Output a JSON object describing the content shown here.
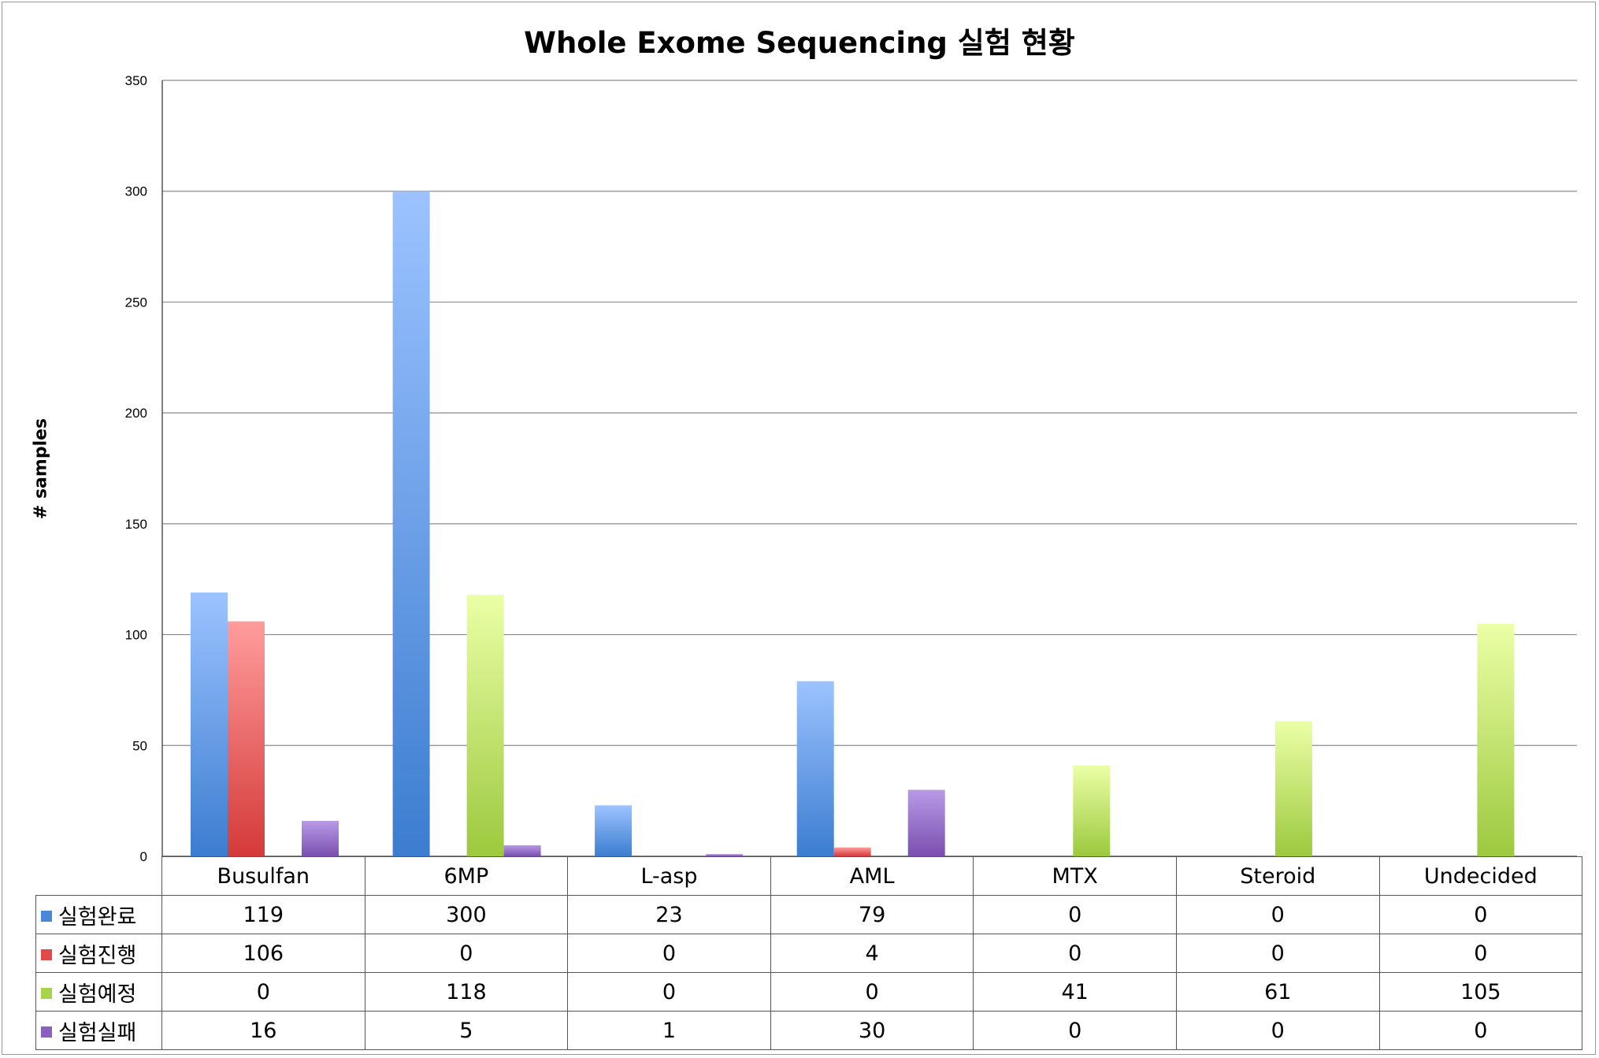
{
  "chart_data": {
    "type": "bar",
    "title": "Whole Exome Sequencing 실험 현황",
    "xlabel": "",
    "ylabel": "# samples",
    "ylim": [
      0,
      350
    ],
    "yticks": [
      0,
      50,
      100,
      150,
      200,
      250,
      300,
      350
    ],
    "grid": true,
    "legend": "data-table",
    "categories": [
      "Busulfan",
      "6MP",
      "L-asp",
      "AML",
      "MTX",
      "Steroid",
      "Undecided"
    ],
    "series": [
      {
        "name": "실험완료",
        "color": "#4a87d6",
        "values": [
          119,
          300,
          23,
          79,
          0,
          0,
          0
        ]
      },
      {
        "name": "실험진행",
        "color": "#e04a4a",
        "values": [
          106,
          0,
          0,
          4,
          0,
          0,
          0
        ]
      },
      {
        "name": "실험예정",
        "color": "#a7d44a",
        "values": [
          0,
          118,
          0,
          0,
          41,
          61,
          105
        ]
      },
      {
        "name": "실험실패",
        "color": "#8a5fbf",
        "values": [
          16,
          5,
          1,
          30,
          0,
          0,
          0
        ]
      }
    ]
  },
  "gradients": [
    {
      "top": "#9cc3ff",
      "bottom": "#3c7dd0"
    },
    {
      "top": "#ff9c9c",
      "bottom": "#d43a3a"
    },
    {
      "top": "#ebffa6",
      "bottom": "#9cc93e"
    },
    {
      "top": "#b89ae6",
      "bottom": "#7a4fb0"
    }
  ]
}
